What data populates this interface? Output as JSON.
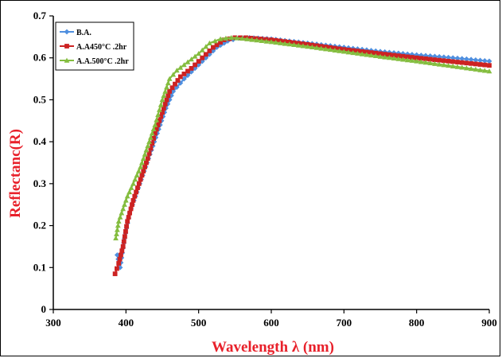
{
  "chart_data": {
    "type": "line",
    "title": "",
    "xlabel": "Wavelength λ (nm)",
    "ylabel": "Reflectanc(R)",
    "label_color": "#e8202a",
    "xlim": [
      300,
      900
    ],
    "ylim": [
      0,
      0.7
    ],
    "x_ticks": [
      "300",
      "400",
      "500",
      "600",
      "700",
      "800",
      "900"
    ],
    "y_ticks": [
      "0",
      "0.1",
      "0.2",
      "0.3",
      "0.4",
      "0.5",
      "0.6",
      "0.7"
    ],
    "grid": false,
    "legend_position": "top-left",
    "series": [
      {
        "name": "B.A.",
        "color": "#4f8fdf",
        "marker": "diamond",
        "x": [
          388,
          392,
          398,
          405,
          415,
          425,
          435,
          445,
          455,
          465,
          480,
          495,
          510,
          525,
          540,
          555,
          570,
          600,
          650,
          700,
          750,
          800,
          850,
          900
        ],
        "y": [
          0.13,
          0.1,
          0.17,
          0.23,
          0.28,
          0.33,
          0.38,
          0.43,
          0.48,
          0.52,
          0.55,
          0.575,
          0.6,
          0.625,
          0.64,
          0.647,
          0.648,
          0.645,
          0.635,
          0.625,
          0.615,
          0.607,
          0.6,
          0.592
        ]
      },
      {
        "name": "A.A450°C .2hr",
        "color": "#cc2222",
        "marker": "square",
        "x": [
          385,
          390,
          396,
          402,
          410,
          420,
          430,
          440,
          450,
          460,
          475,
          490,
          505,
          520,
          535,
          550,
          565,
          600,
          650,
          700,
          750,
          800,
          850,
          900
        ],
        "y": [
          0.085,
          0.11,
          0.15,
          0.21,
          0.26,
          0.31,
          0.36,
          0.42,
          0.47,
          0.52,
          0.555,
          0.575,
          0.6,
          0.625,
          0.643,
          0.648,
          0.648,
          0.643,
          0.632,
          0.62,
          0.61,
          0.6,
          0.591,
          0.582
        ]
      },
      {
        "name": "A.A.500°C .2hr",
        "color": "#84bd3f",
        "marker": "triangle",
        "x": [
          386,
          390,
          396,
          402,
          410,
          420,
          430,
          440,
          450,
          460,
          470,
          485,
          500,
          515,
          530,
          545,
          560,
          600,
          650,
          700,
          750,
          800,
          850,
          900
        ],
        "y": [
          0.17,
          0.21,
          0.24,
          0.27,
          0.3,
          0.34,
          0.39,
          0.44,
          0.5,
          0.55,
          0.57,
          0.59,
          0.61,
          0.635,
          0.645,
          0.648,
          0.646,
          0.638,
          0.627,
          0.615,
          0.603,
          0.592,
          0.58,
          0.568
        ]
      }
    ]
  }
}
